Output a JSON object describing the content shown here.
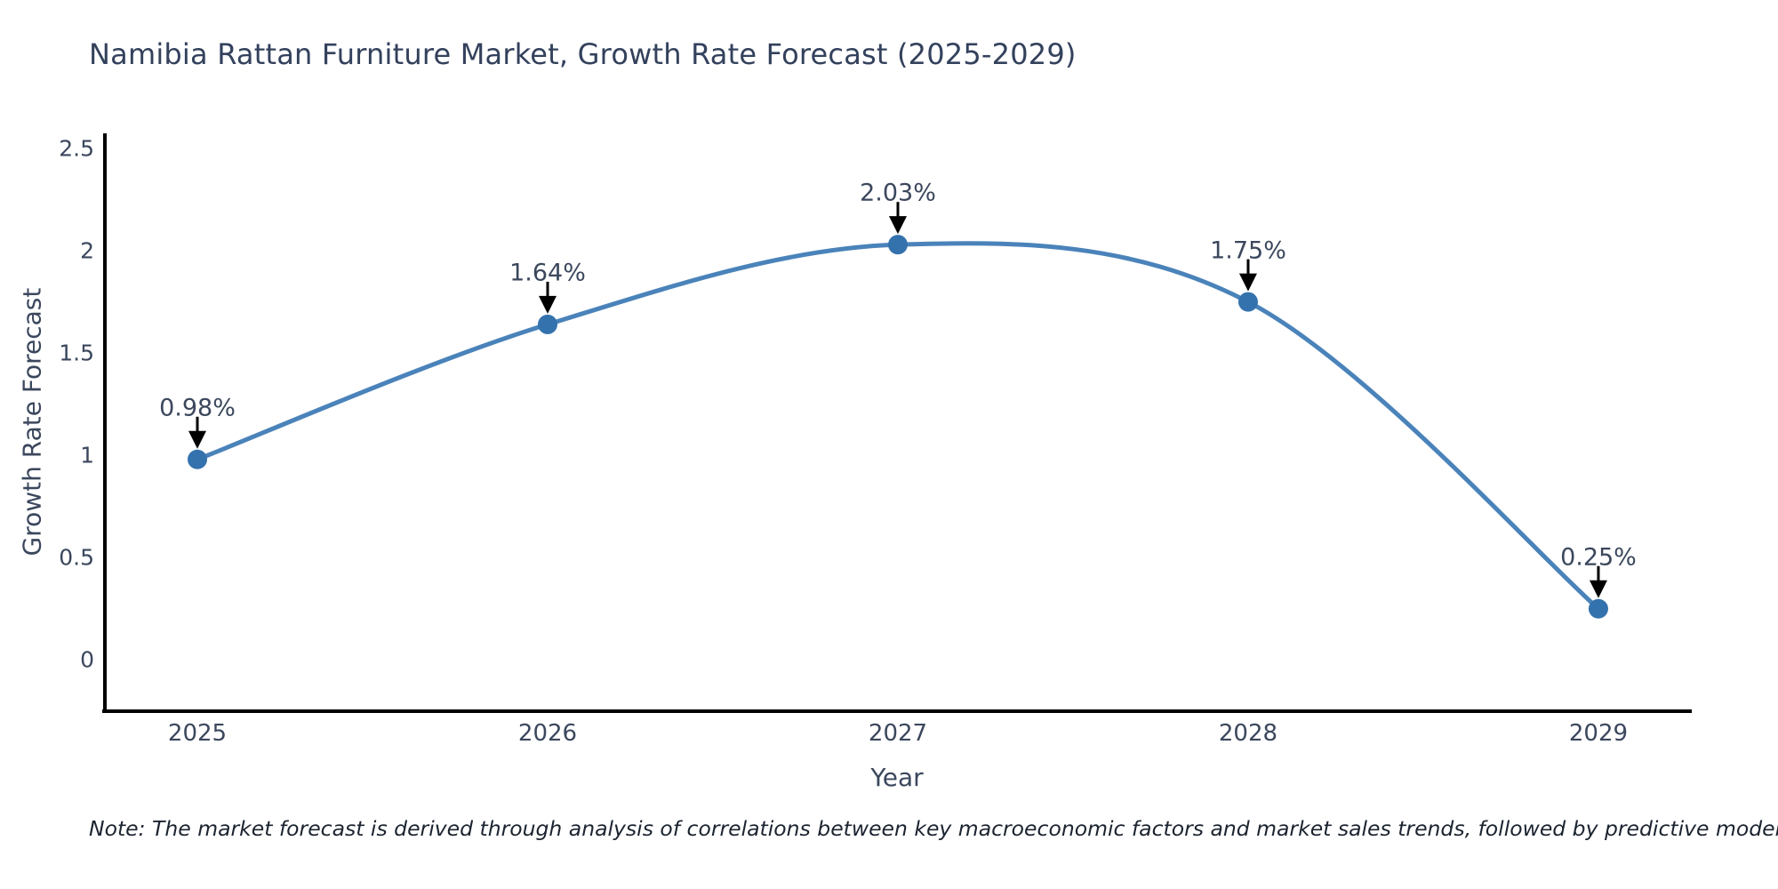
{
  "header": {
    "title": "Namibia Rattan Furniture Market, Growth Rate Forecast (2025-2029)"
  },
  "footer": {
    "note": "Note: The market forecast is derived through analysis of correlations between key macroeconomic factors and market sales trends, followed by predictive modeling to project future sales"
  },
  "colors": {
    "line": "#4a83ba",
    "marker": "#3472ad",
    "axis": "#000000",
    "arrow": "#000000",
    "tick_text": "#3b475d",
    "title_text": "#33415c"
  },
  "chart_data": {
    "type": "line",
    "line_shape": "spline",
    "title": "Namibia Rattan Furniture Market, Growth Rate Forecast (2025-2029)",
    "xlabel": "Year",
    "ylabel": "Growth Rate Forecast",
    "x": [
      2025,
      2026,
      2027,
      2028,
      2029
    ],
    "values": [
      0.98,
      1.64,
      2.03,
      1.75,
      0.25
    ],
    "point_labels": [
      "0.98%",
      "1.64%",
      "2.03%",
      "1.75%",
      "0.25%"
    ],
    "xtick_labels": [
      "2025",
      "2026",
      "2027",
      "2028",
      "2029"
    ],
    "ytick_values": [
      0,
      0.5,
      1,
      1.5,
      2,
      2.5
    ],
    "ytick_labels": [
      "0",
      "0.5",
      "1",
      "1.5",
      "2",
      "2.5"
    ],
    "xlim": [
      2024.736,
      2029.259
    ],
    "ylim": [
      -0.251,
      2.574
    ],
    "grid": false,
    "legend": "none",
    "annotations": "value labels with down arrows above each point"
  }
}
